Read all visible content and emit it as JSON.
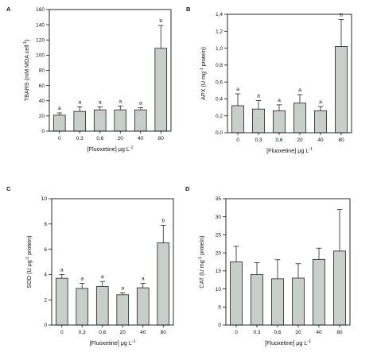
{
  "chart_data": [
    {
      "type": "bar",
      "panel": "A",
      "categories": [
        "0",
        "0,3",
        "0,6",
        "20",
        "40",
        "80"
      ],
      "values": [
        21,
        26,
        28,
        28,
        28,
        109
      ],
      "errors": [
        3,
        6,
        4,
        5,
        3,
        30
      ],
      "significance": [
        "a",
        "a",
        "a",
        "a",
        "a",
        "b"
      ],
      "ylabel_main": "TBARS (mM MDA cell",
      "ylabel_sup": "-1",
      "ylabel_end": ")",
      "xlabel_main": "[Fluoxetine] μg L",
      "xlabel_sup": "-1",
      "ylim": [
        0,
        160
      ],
      "yticks": [
        0,
        20,
        40,
        60,
        80,
        100,
        120,
        140,
        160
      ],
      "ytick_labels": [
        "0",
        "20",
        "40",
        "60",
        "80",
        "100",
        "120",
        "140",
        "160"
      ],
      "bar_color": "#c8cfcb"
    },
    {
      "type": "bar",
      "panel": "B",
      "categories": [
        "0",
        "0,3",
        "0,6",
        "20",
        "40",
        "80"
      ],
      "values": [
        0.32,
        0.28,
        0.26,
        0.35,
        0.26,
        1.02
      ],
      "errors": [
        0.14,
        0.1,
        0.07,
        0.1,
        0.05,
        0.32
      ],
      "significance": [
        "a",
        "a",
        "a",
        "a",
        "a",
        "b"
      ],
      "ylabel_main": "APX (U mg",
      "ylabel_sup": "-1",
      "ylabel_end": " protein)",
      "xlabel_main": "[Fluoxetine] μg L",
      "xlabel_sup": "-1",
      "ylim": [
        0,
        1.4
      ],
      "yticks": [
        0,
        0.2,
        0.4,
        0.6,
        0.8,
        1.0,
        1.2,
        1.4
      ],
      "ytick_labels": [
        "0,0",
        "0,2",
        "0,4",
        "0,6",
        "0,8",
        "1,0",
        "1,2",
        "1,4"
      ],
      "bar_color": "#c8cfcb"
    },
    {
      "type": "bar",
      "panel": "C",
      "categories": [
        "0",
        "0,3",
        "0,6",
        "20",
        "40",
        "80"
      ],
      "values": [
        3.7,
        2.9,
        3.05,
        2.4,
        2.95,
        6.5
      ],
      "errors": [
        0.3,
        0.4,
        0.4,
        0.15,
        0.35,
        1.4
      ],
      "significance": [
        "a",
        "a",
        "a",
        "a",
        "a",
        "b"
      ],
      "ylabel_main": "SOD (U μg",
      "ylabel_sup": "-1",
      "ylabel_end": " protein)",
      "xlabel_main": "[Fluoxetine] μg L",
      "xlabel_sup": "-1",
      "ylim": [
        0,
        10
      ],
      "yticks": [
        0,
        2,
        4,
        6,
        8,
        10
      ],
      "ytick_labels": [
        "0",
        "2",
        "4",
        "6",
        "8",
        "10"
      ],
      "bar_color": "#c8cfcb"
    },
    {
      "type": "bar",
      "panel": "D",
      "categories": [
        "0",
        "0,3",
        "0,6",
        "20",
        "40",
        "80"
      ],
      "values": [
        17.5,
        14,
        12.8,
        13,
        18.2,
        20.5
      ],
      "errors": [
        4.3,
        3.3,
        5.3,
        4,
        3.1,
        11.5
      ],
      "significance": [
        "",
        "",
        "",
        "",
        "",
        ""
      ],
      "ylabel_main": "CAT (U mg",
      "ylabel_sup": "-1",
      "ylabel_end": " protein)",
      "xlabel_main": "[Fluoxetine] μg L",
      "xlabel_sup": "-1",
      "ylim": [
        0,
        35
      ],
      "yticks": [
        0,
        5,
        10,
        15,
        20,
        25,
        30,
        35
      ],
      "ytick_labels": [
        "0",
        "5",
        "10",
        "15",
        "20",
        "25",
        "30",
        "35"
      ],
      "bar_color": "#c8cfcb"
    }
  ]
}
